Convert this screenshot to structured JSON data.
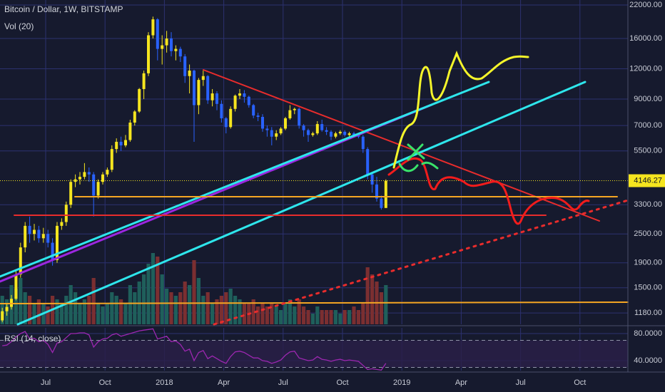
{
  "chart_data": {
    "type": "candlestick",
    "title": "Bitcoin / Dollar, 1W, BITSTAMP",
    "log_scale": true,
    "grid": true,
    "ylim": [
      1060,
      23070
    ],
    "yticks": [
      {
        "value": 1180,
        "label": "1180.00"
      },
      {
        "value": 1500,
        "label": "1500.00"
      },
      {
        "value": 1900,
        "label": "1900.00"
      },
      {
        "value": 2500,
        "label": "2500.00"
      },
      {
        "value": 3300,
        "label": "3300.00"
      },
      {
        "value": 5500,
        "label": "5500.00"
      },
      {
        "value": 7000,
        "label": "7000.00"
      },
      {
        "value": 9000,
        "label": "9000.00"
      },
      {
        "value": 12000,
        "label": "12000.00"
      },
      {
        "value": 16000,
        "label": "16000.00"
      },
      {
        "value": 22000,
        "label": "22000.00"
      }
    ],
    "xlim": [
      -0.5,
      137
    ],
    "xticks": [
      {
        "value": 9.5,
        "label": "Jul"
      },
      {
        "value": 22.5,
        "label": "Oct"
      },
      {
        "value": 35.5,
        "label": "2018"
      },
      {
        "value": 48.5,
        "label": "Apr"
      },
      {
        "value": 61.5,
        "label": "Jul"
      },
      {
        "value": 74.5,
        "label": "Oct"
      },
      {
        "value": 87.5,
        "label": "2019"
      },
      {
        "value": 100.5,
        "label": "Apr"
      },
      {
        "value": 113.5,
        "label": "Jul"
      },
      {
        "value": 126.5,
        "label": "Oct"
      }
    ],
    "up_color": "#f5e51f",
    "down_color": "#2962ff",
    "last_price": 4146.27,
    "ohlc": [
      [
        1100,
        1240,
        1080,
        1200
      ],
      [
        1200,
        1290,
        1150,
        1250
      ],
      [
        1250,
        1400,
        1220,
        1350
      ],
      [
        1350,
        1780,
        1330,
        1700
      ],
      [
        1700,
        2300,
        1650,
        2200
      ],
      [
        2200,
        2800,
        2100,
        2700
      ],
      [
        2700,
        2950,
        2300,
        2500
      ],
      [
        2500,
        2750,
        2350,
        2600
      ],
      [
        2600,
        2700,
        2300,
        2400
      ],
      [
        2400,
        2650,
        2300,
        2500
      ],
      [
        2500,
        2600,
        2200,
        2300
      ],
      [
        2300,
        2400,
        1850,
        1950
      ],
      [
        1950,
        2800,
        1900,
        2700
      ],
      [
        2700,
        2900,
        2600,
        2800
      ],
      [
        2800,
        3400,
        2700,
        3300
      ],
      [
        3300,
        4200,
        3200,
        4100
      ],
      [
        4100,
        4400,
        3900,
        4200
      ],
      [
        4200,
        4500,
        4000,
        4300
      ],
      [
        4300,
        4900,
        4200,
        4500
      ],
      [
        4500,
        4700,
        4100,
        4400
      ],
      [
        4400,
        4500,
        2950,
        3600
      ],
      [
        3600,
        4200,
        3500,
        4100
      ],
      [
        4100,
        4500,
        4000,
        4400
      ],
      [
        4400,
        4700,
        4300,
        4600
      ],
      [
        4600,
        5800,
        4500,
        5600
      ],
      [
        5600,
        6200,
        5400,
        6000
      ],
      [
        6000,
        6300,
        5500,
        5800
      ],
      [
        5800,
        6400,
        5700,
        6100
      ],
      [
        6100,
        7400,
        6000,
        7200
      ],
      [
        7200,
        8100,
        7000,
        8000
      ],
      [
        8000,
        10000,
        7900,
        9900
      ],
      [
        9900,
        11800,
        9000,
        11500
      ],
      [
        11500,
        17000,
        11200,
        16500
      ],
      [
        16500,
        19700,
        16000,
        19200
      ],
      [
        19200,
        19400,
        13000,
        14500
      ],
      [
        14500,
        16500,
        12500,
        15000
      ],
      [
        15000,
        17200,
        14000,
        16000
      ],
      [
        16000,
        17000,
        13500,
        14200
      ],
      [
        14200,
        15000,
        13000,
        14500
      ],
      [
        14500,
        14800,
        12800,
        13500
      ],
      [
        13500,
        13800,
        10500,
        11200
      ],
      [
        11200,
        12500,
        9500,
        11800
      ],
      [
        11800,
        11900,
        6000,
        8500
      ],
      [
        8500,
        11000,
        7800,
        10800
      ],
      [
        10800,
        11800,
        10200,
        11200
      ],
      [
        11200,
        11300,
        8600,
        8900
      ],
      [
        8900,
        9900,
        8400,
        9500
      ],
      [
        9500,
        9700,
        8100,
        8600
      ],
      [
        8600,
        8900,
        7200,
        7500
      ],
      [
        7500,
        7600,
        6500,
        6900
      ],
      [
        6900,
        8400,
        6800,
        8200
      ],
      [
        8200,
        9400,
        8000,
        9300
      ],
      [
        9300,
        9900,
        9000,
        9500
      ],
      [
        9500,
        9800,
        8700,
        9200
      ],
      [
        9200,
        9300,
        8300,
        8500
      ],
      [
        8500,
        8600,
        7500,
        7700
      ],
      [
        7700,
        7900,
        7300,
        7600
      ],
      [
        7600,
        7800,
        6600,
        6800
      ],
      [
        6800,
        7000,
        6300,
        6700
      ],
      [
        6700,
        6900,
        5800,
        6300
      ],
      [
        6300,
        6700,
        6100,
        6500
      ],
      [
        6500,
        6900,
        6400,
        6800
      ],
      [
        6800,
        7600,
        6700,
        7500
      ],
      [
        7500,
        8500,
        7400,
        8100
      ],
      [
        8100,
        8300,
        7800,
        8200
      ],
      [
        8200,
        8300,
        6800,
        7000
      ],
      [
        7000,
        7100,
        6300,
        6700
      ],
      [
        6700,
        6800,
        6000,
        6400
      ],
      [
        6400,
        6600,
        6300,
        6500
      ],
      [
        6500,
        7300,
        6400,
        7100
      ],
      [
        7100,
        7400,
        6600,
        6700
      ],
      [
        6700,
        6900,
        6400,
        6600
      ],
      [
        6600,
        6700,
        6100,
        6300
      ],
      [
        6300,
        6600,
        6200,
        6500
      ],
      [
        6500,
        6700,
        6400,
        6600
      ],
      [
        6600,
        6700,
        6300,
        6400
      ],
      [
        6400,
        6600,
        6300,
        6500
      ],
      [
        6500,
        6600,
        6350,
        6400
      ],
      [
        6400,
        6500,
        6200,
        6300
      ],
      [
        6300,
        6400,
        5400,
        5600
      ],
      [
        5600,
        5700,
        4200,
        4400
      ],
      [
        4400,
        4500,
        3700,
        4000
      ],
      [
        4000,
        4300,
        3400,
        3500
      ],
      [
        3500,
        3600,
        3150,
        3200
      ],
      [
        3200,
        4200,
        3200,
        4146.27
      ]
    ],
    "volume": {
      "name": "Vol (20)",
      "ylim": [
        0,
        120
      ],
      "up_color": "#1f5f5b",
      "down_color": "#7b2f31",
      "values": [
        40,
        35,
        55,
        50,
        65,
        45,
        40,
        30,
        35,
        30,
        25,
        40,
        35,
        30,
        40,
        55,
        45,
        30,
        35,
        40,
        65,
        30,
        25,
        30,
        45,
        40,
        35,
        30,
        55,
        45,
        60,
        70,
        85,
        100,
        95,
        70,
        50,
        45,
        40,
        45,
        60,
        55,
        90,
        65,
        40,
        45,
        30,
        35,
        40,
        45,
        50,
        40,
        35,
        30,
        30,
        35,
        25,
        30,
        25,
        30,
        25,
        20,
        30,
        35,
        25,
        35,
        25,
        20,
        15,
        25,
        20,
        20,
        20,
        20,
        15,
        20,
        20,
        25,
        20,
        30,
        80,
        70,
        60,
        45,
        55
      ]
    },
    "rsi": {
      "name": "RSI (14, close)",
      "color": "#9c27b0",
      "ylim": [
        25.3,
        88.4
      ],
      "yticks": [
        {
          "value": 80,
          "label": "80.0000"
        },
        {
          "value": 40,
          "label": "40.0000"
        }
      ],
      "bands": [
        70,
        30
      ],
      "values": [
        62,
        63,
        68,
        75,
        80,
        83,
        72,
        73,
        68,
        70,
        64,
        52,
        66,
        68,
        74,
        80,
        80,
        81,
        81,
        78,
        60,
        68,
        72,
        73,
        78,
        80,
        76,
        78,
        80,
        82,
        84,
        85,
        86,
        87,
        72,
        74,
        76,
        68,
        69,
        64,
        54,
        57,
        40,
        52,
        55,
        43,
        47,
        43,
        39,
        36,
        46,
        53,
        54,
        52,
        48,
        44,
        44,
        40,
        39,
        36,
        38,
        41,
        48,
        53,
        54,
        44,
        42,
        40,
        41,
        46,
        42,
        41,
        39,
        41,
        42,
        40,
        41,
        40,
        39,
        33,
        27,
        28,
        27,
        26,
        36
      ]
    }
  }
}
